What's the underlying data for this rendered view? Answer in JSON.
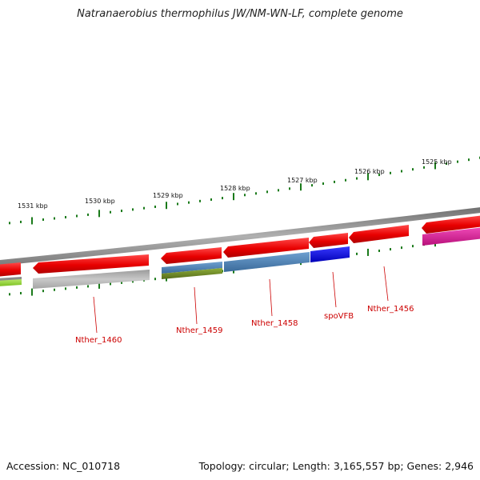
{
  "title": "Natranaerobius thermophilus JW/NM-WN-LF, complete genome",
  "footer": {
    "accession": "Accession: NC_010718",
    "summary": "Topology: circular; Length: 3,165,557 bp; Genes: 2,946"
  },
  "scale_labels": [
    "1531 kbp",
    "1530 kbp",
    "1529 kbp",
    "1528 kbp",
    "1527 kbp",
    "1526 kbp",
    "1525 kbp"
  ],
  "gene_labels": [
    "Nther_1460",
    "Nther_1459",
    "Nther_1458",
    "spoVFB",
    "Nther_1456"
  ],
  "colors": {
    "forward_gene": "#e80000",
    "tick": "#1a7a1a",
    "backbone": "#8c8c8c",
    "label": "#cc0000",
    "blue_gene": "#0000e0",
    "steel_gene": "#4a7fb5",
    "grey_gene": "#b8b8b8",
    "olive_gene": "#6b8e23",
    "magenta_gene": "#e0169a",
    "lime_gene": "#9be040"
  }
}
